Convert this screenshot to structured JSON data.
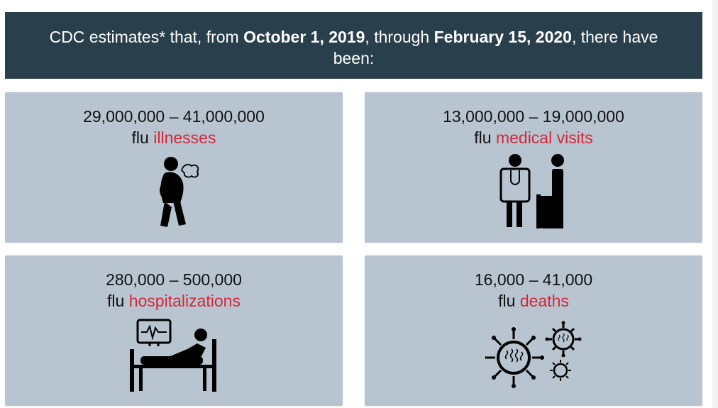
{
  "banner": {
    "part1": "CDC estimates* that, from ",
    "date_start": "October 1, 2019",
    "part2": ", through ",
    "date_end": "February 15, 2020",
    "part3": ", there have been:"
  },
  "cards": [
    {
      "range": "29,000,000 – 41,000,000",
      "prefix": "flu",
      "metric": "illnesses",
      "icon": "sick-person-icon"
    },
    {
      "range": "13,000,000 – 19,000,000",
      "prefix": "flu",
      "metric": "medical visits",
      "icon": "doctor-patient-icon"
    },
    {
      "range": "280,000 – 500,000",
      "prefix": "flu",
      "metric": "hospitalizations",
      "icon": "hospital-bed-icon"
    },
    {
      "range": "16,000 – 41,000",
      "prefix": "flu",
      "metric": "deaths",
      "icon": "virus-icon"
    }
  ],
  "colors": {
    "banner_bg": "#2a3f4c",
    "card_bg": "#b8c5d1",
    "accent": "#d2283a"
  }
}
